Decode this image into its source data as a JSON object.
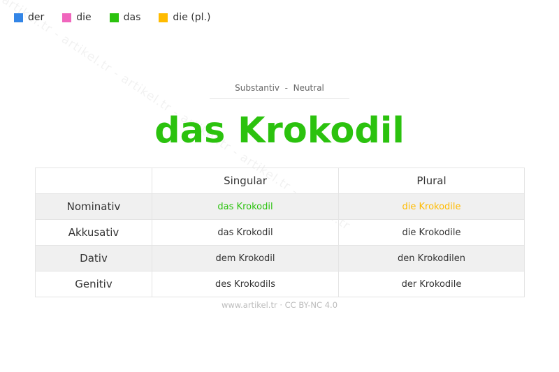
{
  "legend": [
    {
      "label": "der",
      "color": "#3385e6"
    },
    {
      "label": "die",
      "color": "#f066bd"
    },
    {
      "label": "das",
      "color": "#2bc20e"
    },
    {
      "label": "die (pl.)",
      "color": "#ffbb00"
    }
  ],
  "watermark": "artikel.tr - artikel.tr - artikel.tr - artikel.tr - artikel.tr - artikel.tr",
  "header": {
    "subtitle": "Substantiv  -  Neutral",
    "title": "das Krokodil",
    "title_color": "#2bc20e"
  },
  "table": {
    "columns": [
      "",
      "Singular",
      "Plural"
    ],
    "rows": [
      {
        "case": "Nominativ",
        "singular": "das Krokodil",
        "plural": "die Krokodile"
      },
      {
        "case": "Akkusativ",
        "singular": "das Krokodil",
        "plural": "die Krokodile"
      },
      {
        "case": "Dativ",
        "singular": "dem Krokodil",
        "plural": "den Krokodilen"
      },
      {
        "case": "Genitiv",
        "singular": "des Krokodils",
        "plural": "der Krokodile"
      }
    ]
  },
  "footer": "www.artikel.tr · CC BY-NC 4.0"
}
